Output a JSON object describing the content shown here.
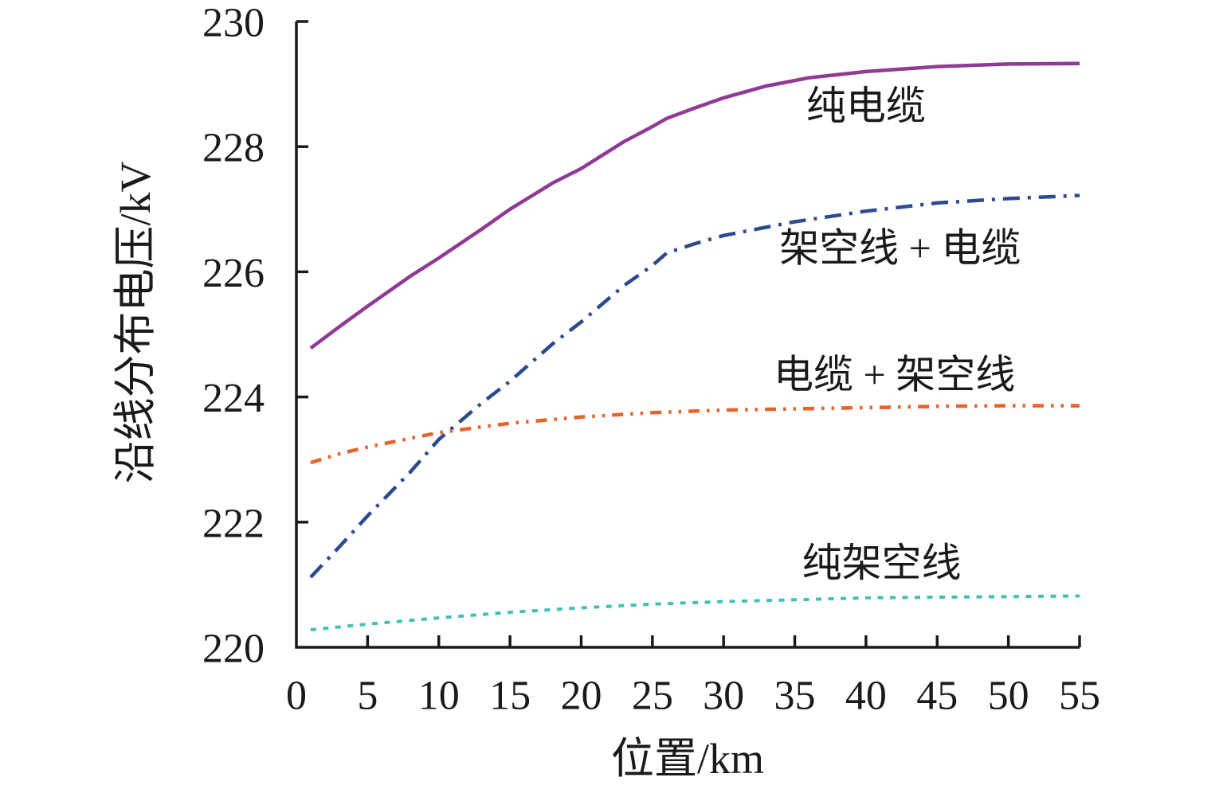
{
  "chart_data": {
    "type": "line",
    "title": "",
    "xlabel": "位置/km",
    "ylabel": "沿线分布电压/kV",
    "xlim": [
      0,
      55
    ],
    "ylim": [
      220,
      230
    ],
    "x_ticks": [
      0,
      5,
      10,
      15,
      20,
      25,
      30,
      35,
      40,
      45,
      50,
      55
    ],
    "y_ticks": [
      220,
      222,
      224,
      226,
      228,
      230
    ],
    "grid": false,
    "legend_position": "inline-annotations",
    "axis_color": "#1a1a1a",
    "series": [
      {
        "id": "pure-cable",
        "name": "纯电缆",
        "color": "#8f3a96",
        "line_style": "solid",
        "x": [
          1,
          3,
          5,
          8,
          10,
          13,
          15,
          18,
          20,
          23,
          25,
          26,
          28,
          30,
          33,
          36,
          40,
          45,
          50,
          55
        ],
        "y": [
          224.78,
          225.12,
          225.45,
          225.93,
          226.22,
          226.68,
          227.0,
          227.42,
          227.65,
          228.08,
          228.32,
          228.45,
          228.62,
          228.78,
          228.97,
          229.1,
          229.2,
          229.28,
          229.32,
          229.33
        ]
      },
      {
        "id": "overhead-plus-cable",
        "name": "架空线 + 电缆",
        "color": "#2c4b8e",
        "line_style": "dashdot",
        "x": [
          1,
          3,
          5,
          8,
          10,
          13,
          15,
          18,
          20,
          23,
          25,
          26,
          28,
          30,
          35,
          40,
          45,
          50,
          55
        ],
        "y": [
          221.12,
          221.6,
          222.1,
          222.8,
          223.32,
          223.9,
          224.25,
          224.85,
          225.2,
          225.78,
          226.1,
          226.3,
          226.45,
          226.58,
          226.8,
          226.97,
          227.1,
          227.17,
          227.22
        ]
      },
      {
        "id": "cable-plus-overhead",
        "name": "电缆 + 架空线",
        "color": "#e8622a",
        "line_style": "dashdotdot",
        "x": [
          1,
          3,
          5,
          8,
          10,
          13,
          15,
          18,
          20,
          25,
          30,
          35,
          40,
          45,
          50,
          55
        ],
        "y": [
          222.95,
          223.09,
          223.2,
          223.34,
          223.43,
          223.52,
          223.58,
          223.64,
          223.68,
          223.75,
          223.79,
          223.81,
          223.83,
          223.85,
          223.86,
          223.86
        ]
      },
      {
        "id": "pure-overhead",
        "name": "纯架空线",
        "color": "#41c0b8",
        "line_style": "dotted",
        "x": [
          1,
          5,
          10,
          15,
          20,
          25,
          30,
          35,
          40,
          45,
          50,
          55
        ],
        "y": [
          220.28,
          220.37,
          220.47,
          220.56,
          220.63,
          220.69,
          220.73,
          220.76,
          220.79,
          220.8,
          220.81,
          220.82
        ]
      }
    ],
    "annotations": [
      {
        "series": "pure-cable",
        "text": "纯电缆",
        "x_km": 40.0,
        "y_kv": 228.65
      },
      {
        "series": "overhead-plus-cable",
        "text": "架空线 + 电缆",
        "x_km": 42.4,
        "y_kv": 226.38
      },
      {
        "series": "cable-plus-overhead",
        "text": "电缆 + 架空线",
        "x_km": 42.0,
        "y_kv": 224.36
      },
      {
        "series": "pure-overhead",
        "text": "纯架空线",
        "x_km": 41.1,
        "y_kv": 221.35
      }
    ]
  }
}
